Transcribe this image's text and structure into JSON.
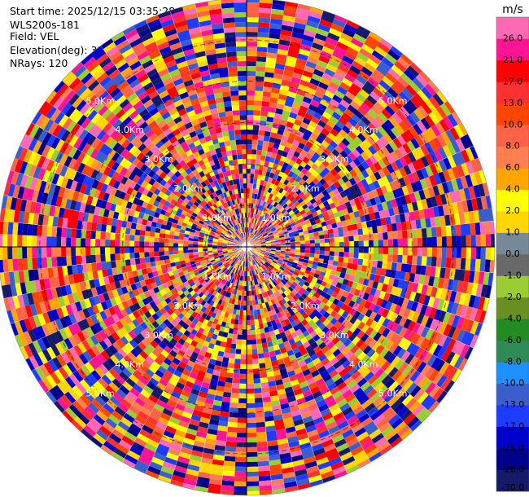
{
  "info": {
    "start_time": "Start time: 2025/12/15 03:35:28",
    "instrument": "WLS200s-181",
    "field": "Field: VEL",
    "elevation": "Elevation(deg): 35.00",
    "nrays": "NRays: 120"
  },
  "chart_data": {
    "type": "heatmap",
    "projection": "polar-ppi",
    "field": "VEL",
    "n_rays": 120,
    "range_rings_km": [
      1.0,
      2.0,
      3.0,
      4.0,
      5.0
    ],
    "range_ring_labels": [
      "1.0Km",
      "2.0Km",
      "3.0Km",
      "4.0Km",
      "5.0Km"
    ],
    "max_range_km": 6.0,
    "colorbar": {
      "unit": "m/s",
      "boundaries": [
        -30.0,
        -26.0,
        -21.0,
        -17.0,
        -13.0,
        -10.0,
        -8.0,
        -6.0,
        -4.0,
        -2.0,
        -1.0,
        0.0,
        1.0,
        2.0,
        4.0,
        6.0,
        8.0,
        10.0,
        13.0,
        17.0,
        21.0,
        26.0
      ],
      "tick_labels": [
        "26.0",
        "21.0",
        "17.0",
        "13.0",
        "10.0",
        "8.0",
        "6.0",
        "4.0",
        "2.0",
        "1.0",
        "0.0",
        "-1.0",
        "-2.0",
        "-4.0",
        "-6.0",
        "-8.0",
        "-10.0",
        "-13.0",
        "-17.0",
        "-21.0",
        "-26.0",
        "-30.0"
      ],
      "colors": [
        "#151a6b",
        "#00008b",
        "#0000cd",
        "#1e3cff",
        "#3a5fcd",
        "#1e90ff",
        "#2e8b57",
        "#228b22",
        "#6b8e23",
        "#9acd32",
        "#696969",
        "#778899",
        "#ffd700",
        "#ffff00",
        "#ffa500",
        "#ff7f50",
        "#ff6347",
        "#ff4500",
        "#ff3030",
        "#ff0000",
        "#ff1493",
        "#ff69b4"
      ]
    }
  }
}
